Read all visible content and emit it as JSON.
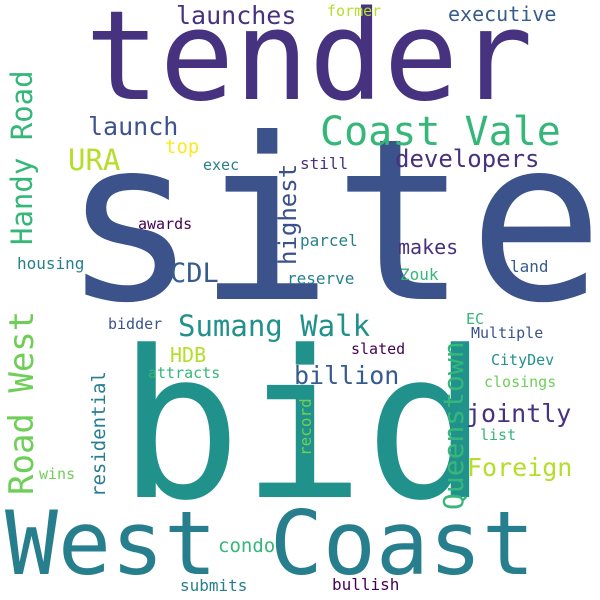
{
  "words": {
    "site": "site",
    "bid": "bid",
    "tender": "tender",
    "west_coast": "West Coast",
    "coast_vale": "Coast Vale",
    "road_west": "Road West",
    "handy_road": "Handy Road",
    "sumang_walk": "Sumang Walk",
    "queenstown": "Queenstown",
    "ura": "URA",
    "cdl": "CDL",
    "launches": "launches",
    "launch": "launch",
    "executive": "executive",
    "developers": "developers",
    "highest": "highest",
    "billion": "billion",
    "jointly": "jointly",
    "foreign": "Foreign",
    "residential": "residential",
    "makes": "makes",
    "hdb": "HDB",
    "condo": "condo",
    "top": "top",
    "former": "former",
    "exec": "exec",
    "still": "still",
    "awards": "awards",
    "parcel": "parcel",
    "housing": "housing",
    "land": "land",
    "reserve": "reserve",
    "zouk": "Zouk",
    "bidder": "bidder",
    "ec": "EC",
    "multiple": "Multiple",
    "slated": "slated",
    "citydev": "CityDev",
    "attracts": "attracts",
    "closings": "closings",
    "record": "record",
    "list": "list",
    "wins": "wins",
    "submits": "submits",
    "bullish": "bullish"
  },
  "palette": {
    "dark_purple": "#46327e",
    "indigo": "#3b528b",
    "blue": "#365c8d",
    "teal_blue": "#277f8e",
    "teal": "#21918c",
    "green": "#35b779",
    "light_green": "#6ece58",
    "yellow_green": "#b5de2b",
    "yellow": "#fde725",
    "deep_purple": "#440154"
  }
}
